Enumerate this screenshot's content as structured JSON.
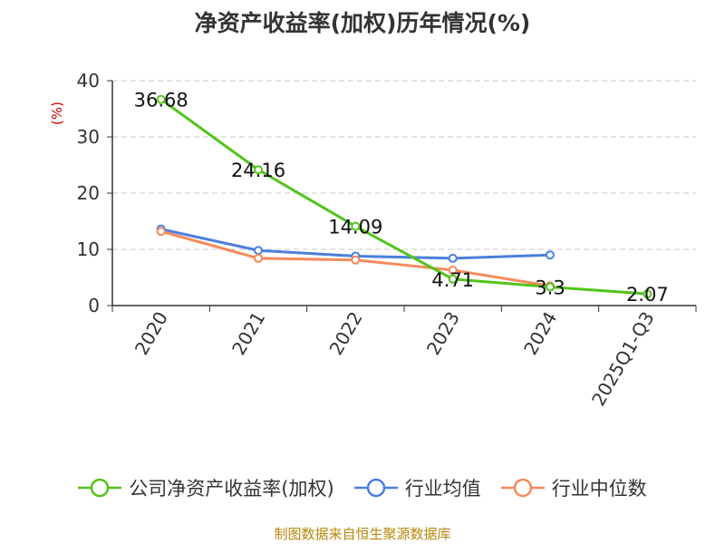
{
  "title": "净资产收益率(加权)历年情况(%)",
  "source": "制图数据来自恒生聚源数据库",
  "chart_data": {
    "type": "line",
    "title": "净资产收益率(加权)历年情况(%)",
    "ylabel": "(%)",
    "ylim": [
      0,
      40
    ],
    "yticks": [
      "0",
      "10",
      "20",
      "30",
      "40"
    ],
    "grid": true,
    "legend_position": "bottom",
    "categories": [
      "2020",
      "2021",
      "2022",
      "2023",
      "2024",
      "2025Q1-Q3"
    ],
    "series": [
      {
        "name": "公司净资产收益率(加权)",
        "color": "#52c41a",
        "values": [
          36.68,
          24.16,
          14.09,
          4.71,
          3.3,
          2.07
        ],
        "labels": [
          "36.68",
          "24.16",
          "14.09",
          "4.71",
          "3.3",
          "2.07"
        ]
      },
      {
        "name": "行业均值",
        "color": "#4a7fdc",
        "values": [
          13.6,
          9.8,
          8.8,
          8.4,
          9.0,
          null
        ]
      },
      {
        "name": "行业中位数",
        "color": "#f58a5b",
        "values": [
          13.2,
          8.4,
          8.1,
          6.3,
          3.5,
          null
        ]
      }
    ]
  }
}
